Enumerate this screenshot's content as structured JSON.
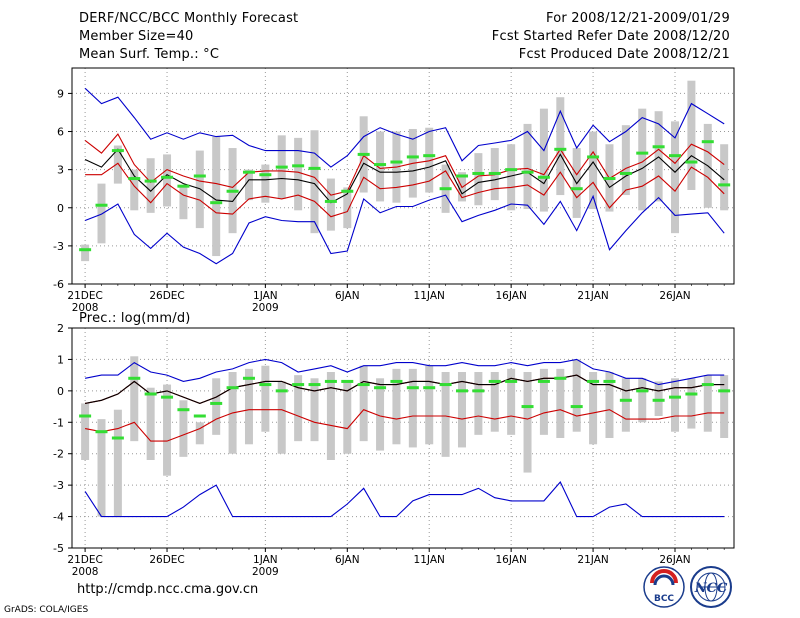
{
  "header": {
    "title": "DERF/NCC/BCC Monthly Forecast",
    "member_size": "Member Size=40",
    "variable": "Mean Surf. Temp.: °C",
    "forecast_period": "For 2008/12/21-2009/01/29",
    "refer_date": "Fcst Started Refer Date 2008/12/20",
    "produced_date": "Fcst Produced Date 2008/12/21"
  },
  "footer": {
    "url": "http://cmdp.ncc.cma.gov.cn",
    "credit": "GrADS: COLA/IGES"
  },
  "logos": {
    "bcc": "BCC",
    "ncc": "NCC"
  },
  "colors": {
    "envelope": "#0000cc",
    "spread": "#cc0000",
    "mean": "#000000",
    "box": "#c8c8c8",
    "median": "#33dd33",
    "grid": "#999999"
  },
  "chart_data": [
    {
      "id": "temp",
      "type": "box-line",
      "ylabel": "Mean Surf. Temp.: °C",
      "ylim": [
        -6,
        11
      ],
      "yticks": [
        -6,
        -3,
        0,
        3,
        6,
        9
      ],
      "xlim": [
        0.2,
        40.6
      ],
      "xticks": [
        {
          "day": 1,
          "label": "21DEC",
          "sub": "2008"
        },
        {
          "day": 6,
          "label": "26DEC",
          "sub": ""
        },
        {
          "day": 12,
          "label": "1JAN",
          "sub": "2009"
        },
        {
          "day": 17,
          "label": "6JAN",
          "sub": ""
        },
        {
          "day": 22,
          "label": "11JAN",
          "sub": ""
        },
        {
          "day": 27,
          "label": "16JAN",
          "sub": ""
        },
        {
          "day": 32,
          "label": "21JAN",
          "sub": ""
        },
        {
          "day": 37,
          "label": "26JAN",
          "sub": ""
        }
      ],
      "days": [
        1,
        2,
        3,
        4,
        5,
        6,
        7,
        8,
        9,
        10,
        11,
        12,
        13,
        14,
        15,
        16,
        17,
        18,
        19,
        20,
        21,
        22,
        23,
        24,
        25,
        26,
        27,
        28,
        29,
        30,
        31,
        32,
        33,
        34,
        35,
        36,
        37,
        38,
        39,
        40
      ],
      "max": [
        9.4,
        8.2,
        8.7,
        7.1,
        5.4,
        5.9,
        5.4,
        5.9,
        5.6,
        5.7,
        4.9,
        4.5,
        4.5,
        4.5,
        4.3,
        3.2,
        4.1,
        5.6,
        6.3,
        5.8,
        5.4,
        6.0,
        6.3,
        3.7,
        4.9,
        5.1,
        5.3,
        6.0,
        4.5,
        7.6,
        4.7,
        6.5,
        5.2,
        6.0,
        7.1,
        6.6,
        5.5,
        8.2,
        7.4,
        6.6
      ],
      "spread_hi": [
        5.3,
        4.3,
        5.8,
        3.4,
        2.0,
        3.0,
        2.5,
        2.1,
        1.9,
        1.6,
        2.8,
        2.9,
        2.9,
        2.8,
        2.4,
        1.0,
        1.3,
        4.1,
        3.1,
        3.2,
        3.5,
        3.7,
        4.1,
        1.6,
        2.5,
        2.6,
        3.0,
        3.1,
        2.6,
        4.6,
        2.6,
        4.4,
        2.3,
        3.1,
        3.6,
        4.6,
        3.5,
        5.0,
        4.4,
        3.4
      ],
      "mean": [
        3.8,
        3.2,
        4.6,
        2.5,
        1.3,
        2.6,
        1.9,
        1.5,
        0.6,
        0.5,
        2.2,
        2.2,
        2.3,
        2.2,
        1.9,
        0.4,
        1.1,
        3.5,
        2.8,
        2.8,
        2.9,
        3.2,
        3.7,
        1.1,
        2.0,
        2.2,
        2.5,
        2.8,
        1.9,
        4.2,
        1.9,
        3.6,
        1.6,
        2.5,
        3.1,
        4.0,
        2.8,
        4.1,
        3.3,
        2.2
      ],
      "spread_lo": [
        2.6,
        2.6,
        3.5,
        1.7,
        0.4,
        1.9,
        1.0,
        0.6,
        -0.4,
        -0.5,
        0.7,
        0.9,
        0.7,
        1.0,
        0.5,
        -0.7,
        -0.3,
        2.4,
        1.5,
        1.6,
        1.8,
        2.1,
        2.9,
        0.8,
        1.2,
        1.5,
        1.6,
        1.8,
        1.0,
        2.8,
        0.8,
        2.0,
        0.0,
        1.4,
        1.7,
        2.5,
        1.3,
        3.2,
        2.4,
        1.1
      ],
      "min": [
        -1.0,
        -0.5,
        0.3,
        -2.1,
        -3.2,
        -2.0,
        -3.1,
        -3.6,
        -4.4,
        -3.6,
        -1.2,
        -0.7,
        -1.0,
        -1.1,
        -1.1,
        -3.6,
        -3.4,
        0.7,
        -0.4,
        0.1,
        0.1,
        0.6,
        1.0,
        -1.1,
        -0.6,
        -0.2,
        0.3,
        0.2,
        -1.3,
        0.5,
        -1.8,
        0.9,
        -3.3,
        -1.8,
        -0.4,
        0.8,
        -0.6,
        -0.5,
        -0.4,
        -2.0
      ],
      "q_hi": [
        -2.9,
        1.9,
        4.9,
        3.0,
        3.9,
        4.2,
        1.8,
        4.5,
        5.6,
        4.7,
        3.0,
        3.4,
        5.7,
        5.5,
        6.1,
        2.3,
        1.6,
        7.2,
        6.0,
        6.0,
        6.2,
        6.3,
        3.4,
        2.8,
        4.3,
        4.7,
        5.0,
        6.6,
        7.8,
        8.7,
        4.7,
        6.0,
        5.0,
        6.5,
        7.8,
        7.6,
        6.8,
        10.0,
        6.6,
        5.0
      ],
      "q_lo": [
        -4.2,
        -2.8,
        1.9,
        -0.2,
        -0.4,
        0.1,
        -0.9,
        -1.6,
        -3.8,
        -2.0,
        0.6,
        0.4,
        0.7,
        -0.2,
        -2.0,
        -1.8,
        -1.6,
        1.2,
        0.5,
        0.4,
        0.8,
        1.2,
        -0.4,
        0.5,
        0.2,
        0.6,
        -0.2,
        -0.1,
        -0.3,
        1.0,
        -0.8,
        -0.1,
        -0.3,
        1.0,
        -0.2,
        0.5,
        -2.0,
        1.4,
        0.0,
        -0.2
      ],
      "median": [
        -3.3,
        0.2,
        4.5,
        2.3,
        2.1,
        2.4,
        1.7,
        2.5,
        0.4,
        1.3,
        2.8,
        2.6,
        3.2,
        3.3,
        3.1,
        0.5,
        1.3,
        4.2,
        3.4,
        3.6,
        4.0,
        4.1,
        1.5,
        2.5,
        2.7,
        2.7,
        3.0,
        2.8,
        2.4,
        4.6,
        1.5,
        4.0,
        2.3,
        2.7,
        4.3,
        4.8,
        4.1,
        3.6,
        5.2,
        1.8
      ]
    },
    {
      "id": "prec",
      "type": "box-line",
      "ylabel": "Prec.: log(mm/d)",
      "ylim": [
        -5,
        2
      ],
      "yticks": [
        -5,
        -4,
        -3,
        -2,
        -1,
        0,
        1,
        2
      ],
      "xlim": [
        0.2,
        40.6
      ],
      "xticks": [
        {
          "day": 1,
          "label": "21DEC",
          "sub": "2008"
        },
        {
          "day": 6,
          "label": "26DEC",
          "sub": ""
        },
        {
          "day": 12,
          "label": "1JAN",
          "sub": "2009"
        },
        {
          "day": 17,
          "label": "6JAN",
          "sub": ""
        },
        {
          "day": 22,
          "label": "11JAN",
          "sub": ""
        },
        {
          "day": 27,
          "label": "16JAN",
          "sub": ""
        },
        {
          "day": 32,
          "label": "21JAN",
          "sub": ""
        },
        {
          "day": 37,
          "label": "26JAN",
          "sub": ""
        }
      ],
      "days": [
        1,
        2,
        3,
        4,
        5,
        6,
        7,
        8,
        9,
        10,
        11,
        12,
        13,
        14,
        15,
        16,
        17,
        18,
        19,
        20,
        21,
        22,
        23,
        24,
        25,
        26,
        27,
        28,
        29,
        30,
        31,
        32,
        33,
        34,
        35,
        36,
        37,
        38,
        39,
        40
      ],
      "max": [
        0.4,
        0.5,
        0.5,
        0.9,
        0.6,
        0.5,
        0.3,
        0.4,
        0.6,
        0.7,
        0.9,
        1.0,
        0.9,
        0.6,
        0.7,
        0.8,
        0.6,
        0.8,
        0.8,
        0.9,
        0.9,
        0.8,
        0.8,
        0.9,
        0.8,
        0.8,
        0.9,
        0.8,
        0.9,
        0.9,
        1.0,
        0.7,
        0.6,
        0.4,
        0.4,
        0.2,
        0.3,
        0.4,
        0.5,
        0.5
      ],
      "spread_hi": [
        -0.4,
        -0.3,
        -0.1,
        0.3,
        -0.1,
        0.0,
        -0.2,
        -0.4,
        -0.2,
        0.1,
        0.2,
        0.3,
        0.3,
        0.1,
        0.0,
        0.1,
        0.0,
        0.3,
        0.2,
        0.2,
        0.3,
        0.3,
        0.2,
        0.3,
        0.2,
        0.2,
        0.4,
        0.3,
        0.4,
        0.4,
        0.5,
        0.2,
        0.2,
        0.0,
        0.1,
        0.0,
        0.1,
        0.1,
        0.2,
        0.2
      ],
      "mean": [
        -0.4,
        -0.3,
        -0.1,
        0.3,
        -0.1,
        0.0,
        -0.2,
        -0.4,
        -0.2,
        0.1,
        0.2,
        0.3,
        0.3,
        0.1,
        0.0,
        0.1,
        0.0,
        0.3,
        0.2,
        0.2,
        0.3,
        0.3,
        0.2,
        0.3,
        0.2,
        0.2,
        0.4,
        0.3,
        0.4,
        0.4,
        0.5,
        0.2,
        0.2,
        0.0,
        0.1,
        0.0,
        0.1,
        0.1,
        0.2,
        0.2
      ],
      "spread_lo": [
        -1.2,
        -1.3,
        -1.2,
        -1.0,
        -1.6,
        -1.6,
        -1.4,
        -1.2,
        -0.9,
        -0.7,
        -0.6,
        -0.6,
        -0.6,
        -0.8,
        -1.0,
        -1.1,
        -1.2,
        -0.6,
        -0.8,
        -0.9,
        -0.8,
        -0.8,
        -0.8,
        -0.9,
        -0.8,
        -0.9,
        -0.8,
        -0.9,
        -0.7,
        -0.6,
        -0.8,
        -0.7,
        -0.6,
        -0.9,
        -0.9,
        -0.9,
        -0.8,
        -0.8,
        -0.7,
        -0.7
      ],
      "min": [
        -3.2,
        -4.0,
        -4.0,
        -4.0,
        -4.0,
        -4.0,
        -3.7,
        -3.3,
        -3.0,
        -4.0,
        -4.0,
        -4.0,
        -4.0,
        -4.0,
        -4.0,
        -4.0,
        -3.6,
        -3.1,
        -4.0,
        -4.0,
        -3.5,
        -3.3,
        -3.3,
        -3.3,
        -3.1,
        -3.4,
        -3.5,
        -3.5,
        -3.5,
        -2.9,
        -4.0,
        -4.0,
        -3.7,
        -3.6,
        -4.0,
        -4.0,
        -4.0,
        -4.0,
        -4.0,
        -4.0
      ],
      "q_hi": [
        -0.4,
        -0.9,
        -0.6,
        1.1,
        0.1,
        0.2,
        -0.3,
        -1.0,
        0.4,
        0.6,
        0.7,
        0.8,
        0.3,
        0.5,
        0.4,
        0.6,
        0.3,
        0.8,
        0.4,
        0.7,
        0.7,
        0.8,
        0.6,
        0.6,
        0.6,
        0.6,
        0.7,
        0.6,
        0.7,
        0.7,
        1.0,
        0.6,
        0.6,
        0.4,
        0.4,
        0.3,
        0.4,
        0.4,
        0.5,
        0.5
      ],
      "q_lo": [
        -2.2,
        -4.0,
        -4.0,
        -1.6,
        -2.2,
        -2.7,
        -2.1,
        -1.7,
        -1.4,
        -2.0,
        -1.7,
        -1.3,
        -2.0,
        -1.6,
        -1.6,
        -2.2,
        -2.0,
        -1.6,
        -1.9,
        -1.7,
        -1.8,
        -1.7,
        -2.1,
        -1.8,
        -1.4,
        -1.3,
        -1.4,
        -2.6,
        -1.4,
        -1.5,
        -1.3,
        -1.7,
        -1.5,
        -1.3,
        -1.0,
        -0.8,
        -1.3,
        -1.2,
        -1.3,
        -1.5
      ],
      "median": [
        -0.8,
        -1.3,
        -1.5,
        0.4,
        -0.1,
        -0.2,
        -0.6,
        -0.8,
        -0.4,
        0.1,
        0.4,
        0.2,
        0.0,
        0.2,
        0.2,
        0.3,
        0.3,
        0.2,
        0.1,
        0.3,
        0.1,
        0.1,
        0.2,
        0.0,
        0.0,
        0.3,
        0.3,
        -0.5,
        0.3,
        0.4,
        -0.5,
        0.3,
        0.3,
        -0.3,
        0.0,
        -0.3,
        -0.2,
        -0.1,
        0.2,
        0.0
      ]
    }
  ]
}
